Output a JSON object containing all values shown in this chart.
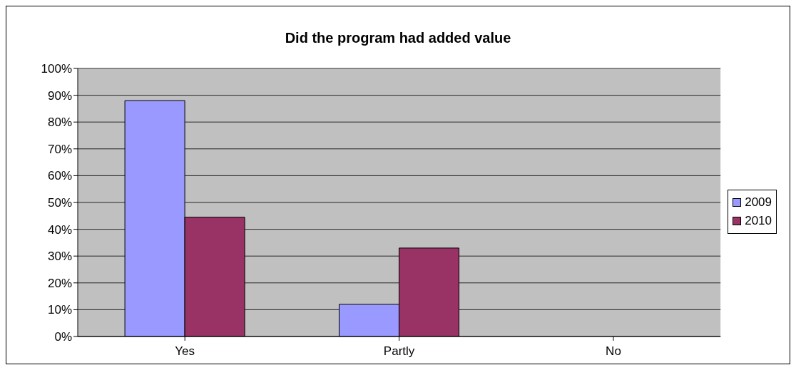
{
  "chart_data": {
    "type": "bar",
    "title": "Did the program had added value",
    "categories": [
      "Yes",
      "Partly",
      "No"
    ],
    "series": [
      {
        "name": "2009",
        "color": "#9999ff",
        "values": [
          88,
          12,
          0
        ]
      },
      {
        "name": "2010",
        "color": "#993366",
        "values": [
          44.5,
          33,
          0
        ]
      }
    ],
    "ylim": [
      0,
      100
    ],
    "yticks": [
      {
        "value": 0,
        "label": "0%"
      },
      {
        "value": 10,
        "label": "10%"
      },
      {
        "value": 20,
        "label": "20%"
      },
      {
        "value": 30,
        "label": "30%"
      },
      {
        "value": 40,
        "label": "40%"
      },
      {
        "value": 50,
        "label": "50%"
      },
      {
        "value": 60,
        "label": "60%"
      },
      {
        "value": 70,
        "label": "70%"
      },
      {
        "value": 80,
        "label": "80%"
      },
      {
        "value": 90,
        "label": "90%"
      },
      {
        "value": 100,
        "label": "100%"
      }
    ],
    "grid": "y",
    "legend": "right"
  }
}
